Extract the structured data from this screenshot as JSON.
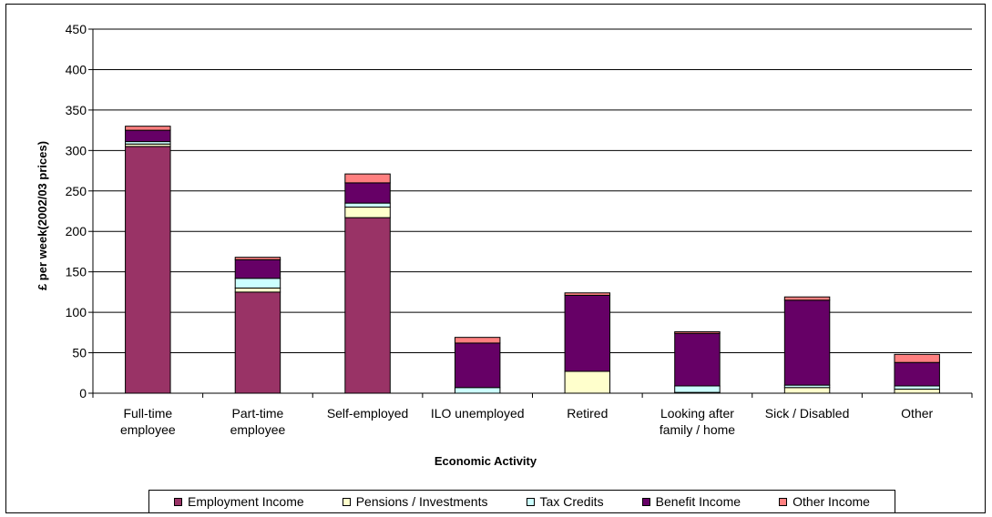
{
  "chart_data": {
    "type": "bar",
    "stacked": true,
    "title": "",
    "xlabel": "Economic Activity",
    "ylabel": "£ per week(2002/03 prices)",
    "ylim": [
      0,
      450
    ],
    "yticks": [
      0,
      50,
      100,
      150,
      200,
      250,
      300,
      350,
      400,
      450
    ],
    "grid": true,
    "legend_position": "bottom",
    "categories": [
      [
        "Full-time",
        "employee"
      ],
      [
        "Part-time",
        "employee"
      ],
      [
        "Self-employed"
      ],
      [
        "ILO unemployed"
      ],
      [
        "Retired"
      ],
      [
        "Looking after",
        "family / home"
      ],
      [
        "Sick / Disabled"
      ],
      [
        "Other"
      ]
    ],
    "series": [
      {
        "name": "Employment Income",
        "color": "#993366",
        "values": [
          305,
          125,
          217,
          0,
          0,
          0,
          0,
          0
        ]
      },
      {
        "name": "Pensions / Investments",
        "color": "#FFFFCC",
        "values": [
          3,
          5,
          13,
          0,
          27,
          1,
          7,
          5
        ]
      },
      {
        "name": "Tax Credits",
        "color": "#CCFFFF",
        "values": [
          3,
          12,
          5,
          7,
          0,
          8,
          3,
          4
        ]
      },
      {
        "name": "Benefit Income",
        "color": "#660066",
        "values": [
          14,
          23,
          25,
          55,
          94,
          65,
          105,
          29
        ]
      },
      {
        "name": "Other Income",
        "color": "#FF8080",
        "values": [
          5,
          3,
          11,
          7,
          3,
          2,
          4,
          10
        ]
      }
    ]
  }
}
